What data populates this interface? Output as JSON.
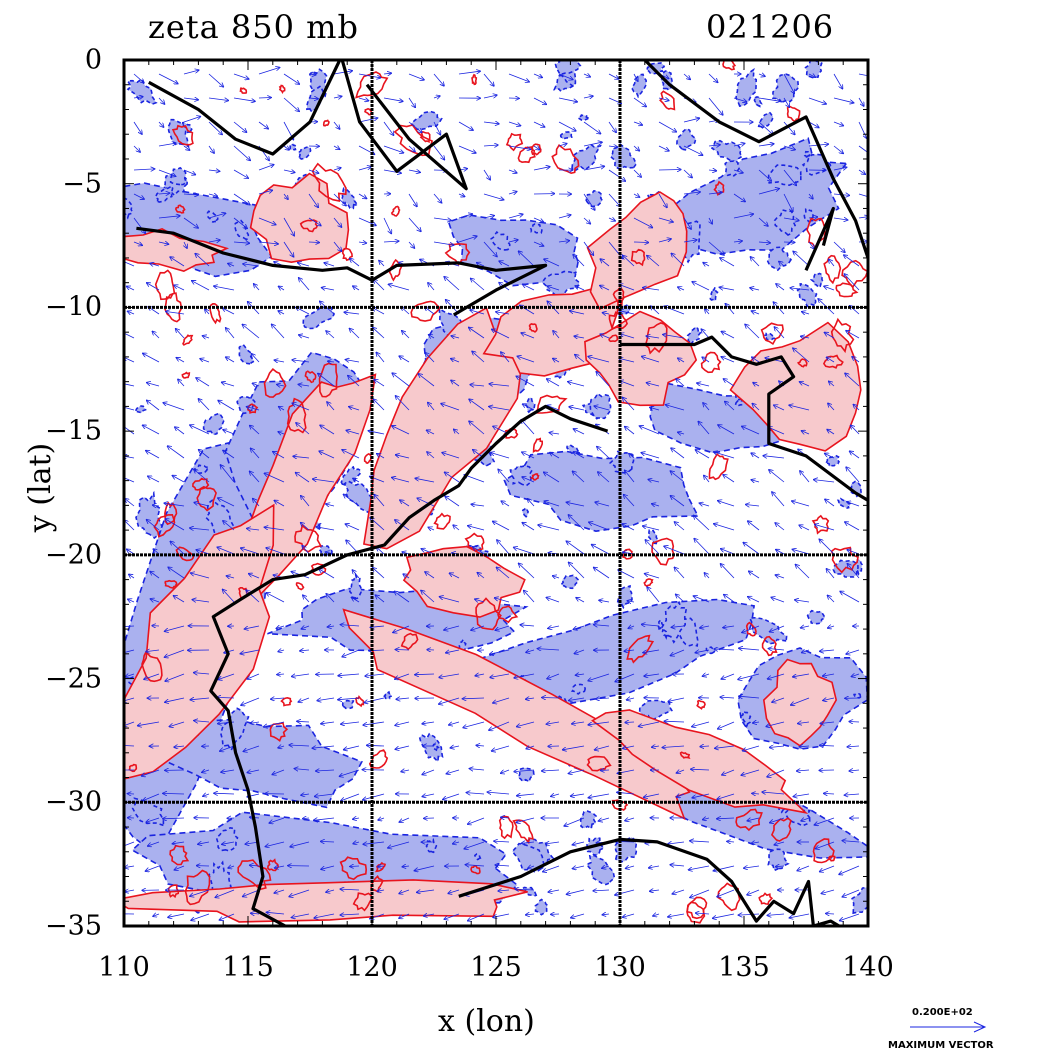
{
  "header": {
    "title": "zeta 850 mb",
    "date_code": "021206"
  },
  "axes": {
    "xlabel": "x (lon)",
    "ylabel": "y (lat)",
    "x_ticks": [
      "110",
      "115",
      "120",
      "125",
      "130",
      "135",
      "140"
    ],
    "y_ticks": [
      "0",
      "−5",
      "−10",
      "−15",
      "−20",
      "−25",
      "−30",
      "−35"
    ]
  },
  "legend": {
    "vector_value": "0.200E+02",
    "vector_caption": "MAXIMUM VECTOR"
  },
  "colors": {
    "positive_fill": "#f7c9cc",
    "positive_contour": "#e8141e",
    "negative_fill": "#aab1ef",
    "negative_contour": "#1a24e0",
    "coastline": "#000000",
    "vector": "#1a24e0"
  },
  "chart_data": {
    "type": "heatmap",
    "title": "zeta 850 mb",
    "xlabel": "x (lon)",
    "ylabel": "y (lat)",
    "xlim": [
      110,
      140
    ],
    "ylim": [
      -35,
      0
    ],
    "grid": true,
    "gridlines_x": [
      120,
      130
    ],
    "gridlines_y": [
      -10,
      -20,
      -30
    ]
  }
}
